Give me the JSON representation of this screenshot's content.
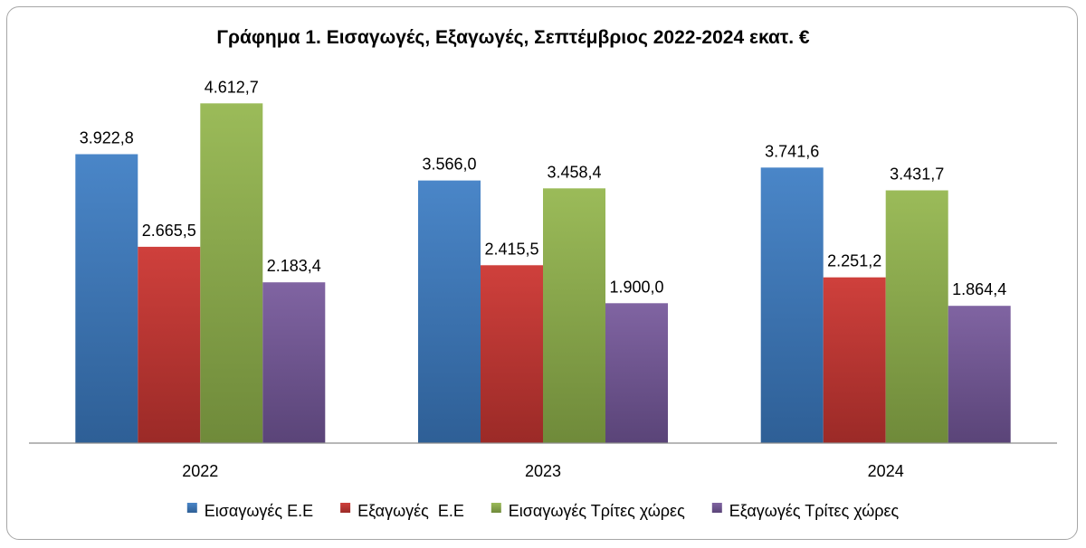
{
  "chart_data": {
    "type": "bar",
    "title": "Γράφημα 1. Εισαγωγές, Εξαγωγές, Σεπτέμβριος 2022-2024 εκατ. €",
    "xlabel": "",
    "ylabel": "",
    "categories": [
      "2022",
      "2023",
      "2024"
    ],
    "series": [
      {
        "name": "Εισαγωγές Ε.Ε",
        "values": [
          3922.8,
          3566.0,
          3741.6
        ],
        "labels": [
          "3.922,8",
          "3.566,0",
          "3.741,6"
        ],
        "color": "#4a86c8",
        "color_dark": "#2e5f96"
      },
      {
        "name": "Εξαγωγές  Ε.Ε",
        "values": [
          2665.5,
          2415.5,
          2251.2
        ],
        "labels": [
          "2.665,5",
          "2.415,5",
          "2.251,2"
        ],
        "color": "#cf403c",
        "color_dark": "#9b2a27"
      },
      {
        "name": "Εισαγωγές Τρίτες χώρες",
        "values": [
          4612.7,
          3458.4,
          3431.7
        ],
        "labels": [
          "4.612,7",
          "3.458,4",
          "3.431,7"
        ],
        "color": "#9bbb59",
        "color_dark": "#6f8a3a"
      },
      {
        "name": "Εξαγωγές Τρίτες χώρες",
        "values": [
          2183.4,
          1900.0,
          1864.4
        ],
        "labels": [
          "2.183,4",
          "1.900,0",
          "1.864,4"
        ],
        "color": "#8064a2",
        "color_dark": "#5a4478"
      }
    ],
    "ylim": [
      0,
      4850
    ],
    "grid": false,
    "legend_position": "bottom"
  }
}
